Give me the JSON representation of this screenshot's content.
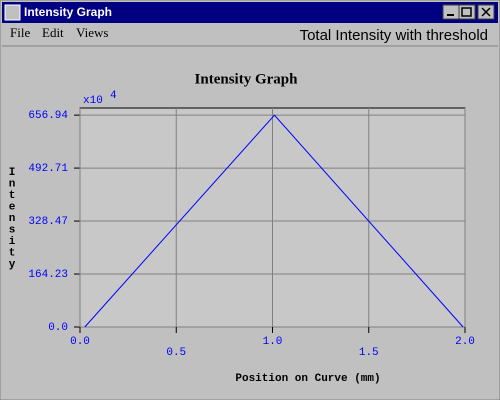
{
  "window": {
    "title": "Intensity Graph"
  },
  "menu": [
    "File",
    "Edit",
    "Views"
  ],
  "header": "Total Intensity with threshold",
  "chart_data": {
    "type": "line",
    "title": "Intensity Graph",
    "x_label": "Position on Curve (mm)",
    "y_label": "Intensity",
    "y_multiplier": "x10",
    "y_exponent": "4",
    "x": [
      0.025,
      1.01,
      1.99
    ],
    "series": [
      {
        "color": "#0000ff",
        "values": [
          0,
          656.94,
          0
        ]
      }
    ],
    "xlim": [
      0,
      2.0
    ],
    "xticks": [
      {
        "value": 0,
        "label": "0.0"
      },
      0.5,
      {
        "value": 1,
        "label": "1.0"
      },
      1.5,
      {
        "value": 2,
        "label": "2.0"
      }
    ],
    "ylim": [
      0,
      679
    ],
    "yticks": [
      {
        "value": 0,
        "label": "0.0"
      },
      164.23,
      328.47,
      492.71,
      656.94
    ],
    "grid": true
  }
}
